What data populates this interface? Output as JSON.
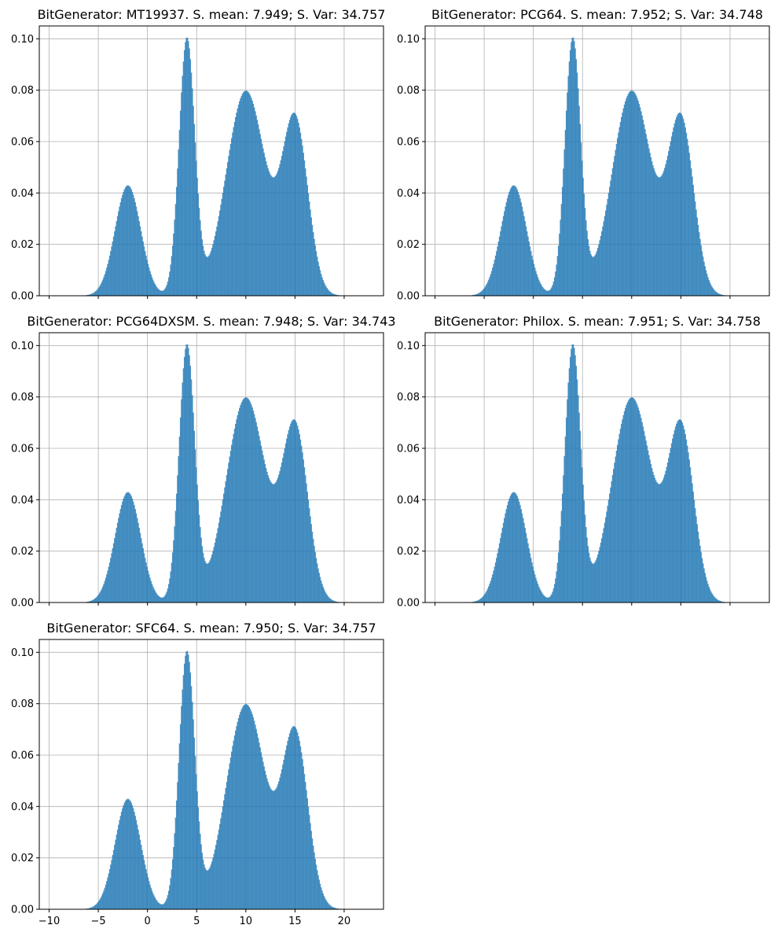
{
  "figure": {
    "bar_color": "#1f77b4",
    "bar_alpha": 0.8,
    "grid": true,
    "shared_x_axis": true
  },
  "chart_data": [
    {
      "type": "bar",
      "title": "BitGenerator: MT19937. S. mean: 7.949; S. Var: 34.757",
      "xlim": [
        -11,
        24
      ],
      "ylim": [
        0,
        0.105
      ],
      "xticks": [
        -10,
        -5,
        0,
        5,
        10,
        15,
        20
      ],
      "yticks": [
        "0.00",
        "0.02",
        "0.04",
        "0.06",
        "0.08",
        "0.10"
      ],
      "show_xtick_labels": false,
      "bin_width": 0.1,
      "density_components": [
        {
          "mean": -2,
          "sd": 1.3,
          "weight": 0.14
        },
        {
          "mean": 4,
          "sd": 0.8,
          "weight": 0.2
        },
        {
          "mean": 10,
          "sd": 2.0,
          "weight": 0.4
        },
        {
          "mean": 15,
          "sd": 1.3,
          "weight": 0.22
        }
      ]
    },
    {
      "type": "bar",
      "title": "BitGenerator: PCG64. S. mean: 7.952; S. Var: 34.748",
      "xlim": [
        -11,
        24
      ],
      "ylim": [
        0,
        0.105
      ],
      "xticks": [
        -10,
        -5,
        0,
        5,
        10,
        15,
        20
      ],
      "yticks": [
        "0.00",
        "0.02",
        "0.04",
        "0.06",
        "0.08",
        "0.10"
      ],
      "show_xtick_labels": false,
      "bin_width": 0.1,
      "density_components": [
        {
          "mean": -2,
          "sd": 1.3,
          "weight": 0.14
        },
        {
          "mean": 4,
          "sd": 0.8,
          "weight": 0.2
        },
        {
          "mean": 10,
          "sd": 2.0,
          "weight": 0.4
        },
        {
          "mean": 15,
          "sd": 1.3,
          "weight": 0.22
        }
      ]
    },
    {
      "type": "bar",
      "title": "BitGenerator: PCG64DXSM. S. mean: 7.948; S. Var: 34.743",
      "xlim": [
        -11,
        24
      ],
      "ylim": [
        0,
        0.105
      ],
      "xticks": [
        -10,
        -5,
        0,
        5,
        10,
        15,
        20
      ],
      "yticks": [
        "0.00",
        "0.02",
        "0.04",
        "0.06",
        "0.08",
        "0.10"
      ],
      "show_xtick_labels": false,
      "bin_width": 0.1,
      "density_components": [
        {
          "mean": -2,
          "sd": 1.3,
          "weight": 0.14
        },
        {
          "mean": 4,
          "sd": 0.8,
          "weight": 0.2
        },
        {
          "mean": 10,
          "sd": 2.0,
          "weight": 0.4
        },
        {
          "mean": 15,
          "sd": 1.3,
          "weight": 0.22
        }
      ]
    },
    {
      "type": "bar",
      "title": "BitGenerator: Philox. S. mean: 7.951; S. Var: 34.758",
      "xlim": [
        -11,
        24
      ],
      "ylim": [
        0,
        0.105
      ],
      "xticks": [
        -10,
        -5,
        0,
        5,
        10,
        15,
        20
      ],
      "yticks": [
        "0.00",
        "0.02",
        "0.04",
        "0.06",
        "0.08",
        "0.10"
      ],
      "show_xtick_labels": false,
      "bin_width": 0.1,
      "density_components": [
        {
          "mean": -2,
          "sd": 1.3,
          "weight": 0.14
        },
        {
          "mean": 4,
          "sd": 0.8,
          "weight": 0.2
        },
        {
          "mean": 10,
          "sd": 2.0,
          "weight": 0.4
        },
        {
          "mean": 15,
          "sd": 1.3,
          "weight": 0.22
        }
      ]
    },
    {
      "type": "bar",
      "title": "BitGenerator: SFC64. S. mean: 7.950; S. Var: 34.757",
      "xlim": [
        -11,
        24
      ],
      "ylim": [
        0,
        0.105
      ],
      "xticks": [
        -10,
        -5,
        0,
        5,
        10,
        15,
        20
      ],
      "yticks": [
        "0.00",
        "0.02",
        "0.04",
        "0.06",
        "0.08",
        "0.10"
      ],
      "show_xtick_labels": true,
      "bin_width": 0.1,
      "density_components": [
        {
          "mean": -2,
          "sd": 1.3,
          "weight": 0.14
        },
        {
          "mean": 4,
          "sd": 0.8,
          "weight": 0.2
        },
        {
          "mean": 10,
          "sd": 2.0,
          "weight": 0.4
        },
        {
          "mean": 15,
          "sd": 1.3,
          "weight": 0.22
        }
      ]
    }
  ]
}
